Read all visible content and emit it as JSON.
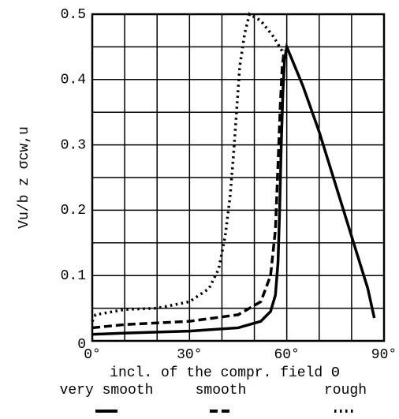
{
  "chart_data": {
    "type": "line",
    "xlabel": "incl. of the compr. field Θ",
    "ylabel": "Vu/b z σcw,u",
    "xlim": [
      0,
      90
    ],
    "ylim": [
      0,
      0.5
    ],
    "xticks": [
      {
        "value": 0,
        "label": "0°"
      },
      {
        "value": 30,
        "label": "30°"
      },
      {
        "value": 60,
        "label": "60°"
      },
      {
        "value": 90,
        "label": "90°"
      }
    ],
    "yticks": [
      0,
      0.1,
      0.2,
      0.3,
      0.4,
      0.5
    ],
    "xgrid": [
      0,
      10,
      20,
      30,
      40,
      50,
      60,
      70,
      80,
      90
    ],
    "ygrid": [
      0,
      0.05,
      0.1,
      0.15,
      0.2,
      0.25,
      0.3,
      0.35,
      0.4,
      0.45,
      0.5
    ],
    "series": [
      {
        "name": "very smooth",
        "color": "#000000",
        "style": "solid",
        "x": [
          0,
          10,
          30,
          45,
          52,
          55,
          56.5,
          57.3,
          57.8,
          58.3,
          58.8,
          59.3,
          60,
          65,
          70,
          75,
          80,
          85,
          87
        ],
        "values": [
          0.01,
          0.012,
          0.015,
          0.02,
          0.03,
          0.045,
          0.07,
          0.12,
          0.2,
          0.3,
          0.38,
          0.43,
          0.45,
          0.39,
          0.32,
          0.24,
          0.16,
          0.08,
          0.035
        ]
      },
      {
        "name": "smooth",
        "color": "#000000",
        "style": "dashed",
        "x": [
          0,
          10,
          30,
          45,
          52,
          55,
          56.5,
          57.3,
          58,
          58.6,
          59.2
        ],
        "values": [
          0.02,
          0.025,
          0.03,
          0.04,
          0.06,
          0.1,
          0.17,
          0.27,
          0.36,
          0.42,
          0.445
        ]
      },
      {
        "name": "rough",
        "color": "#000000",
        "style": "dotted",
        "x": [
          0,
          1,
          10,
          20,
          30,
          36,
          39,
          41,
          42.5,
          43.5,
          44.5,
          45.5,
          47,
          48.5,
          52,
          56,
          59
        ],
        "values": [
          0.03,
          0.04,
          0.048,
          0.05,
          0.06,
          0.08,
          0.11,
          0.16,
          0.22,
          0.28,
          0.35,
          0.42,
          0.47,
          0.5,
          0.49,
          0.465,
          0.44
        ]
      }
    ]
  }
}
